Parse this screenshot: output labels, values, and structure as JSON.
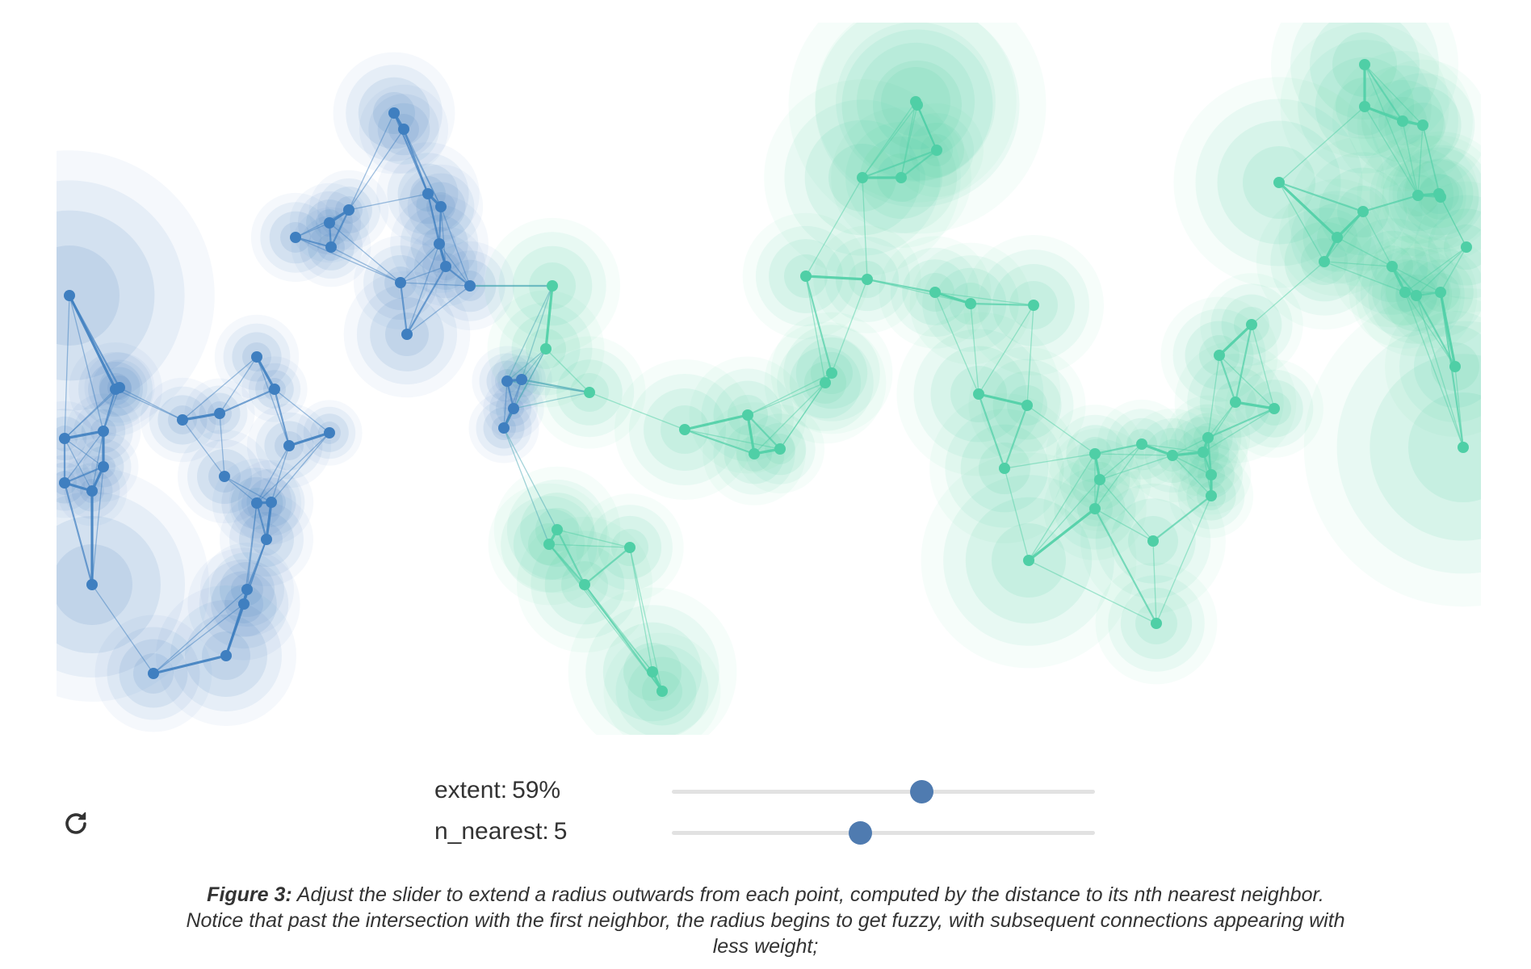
{
  "controls": {
    "reload_icon": "reload-icon",
    "extent": {
      "label": "extent:",
      "value_text": "59%",
      "value": 59,
      "min": 0,
      "max": 100
    },
    "n_nearest": {
      "label": "n_nearest:",
      "value_text": "5",
      "value": 5,
      "min": 1,
      "max": 10
    }
  },
  "caption": {
    "figure_label": "Figure 3:",
    "text": "Adjust the slider to extend a radius outwards from each point, computed by the distance to its nth nearest neighbor. Notice that past the intersection with the first neighbor, the radius begins to get fuzzy, with subsequent connections appearing with less weight;"
  },
  "colors": {
    "blue_cluster": "#3f7fc0",
    "green_cluster": "#4fcfa6",
    "slider_thumb": "#4f7bb0",
    "slider_track": "#e2e2e2"
  }
}
